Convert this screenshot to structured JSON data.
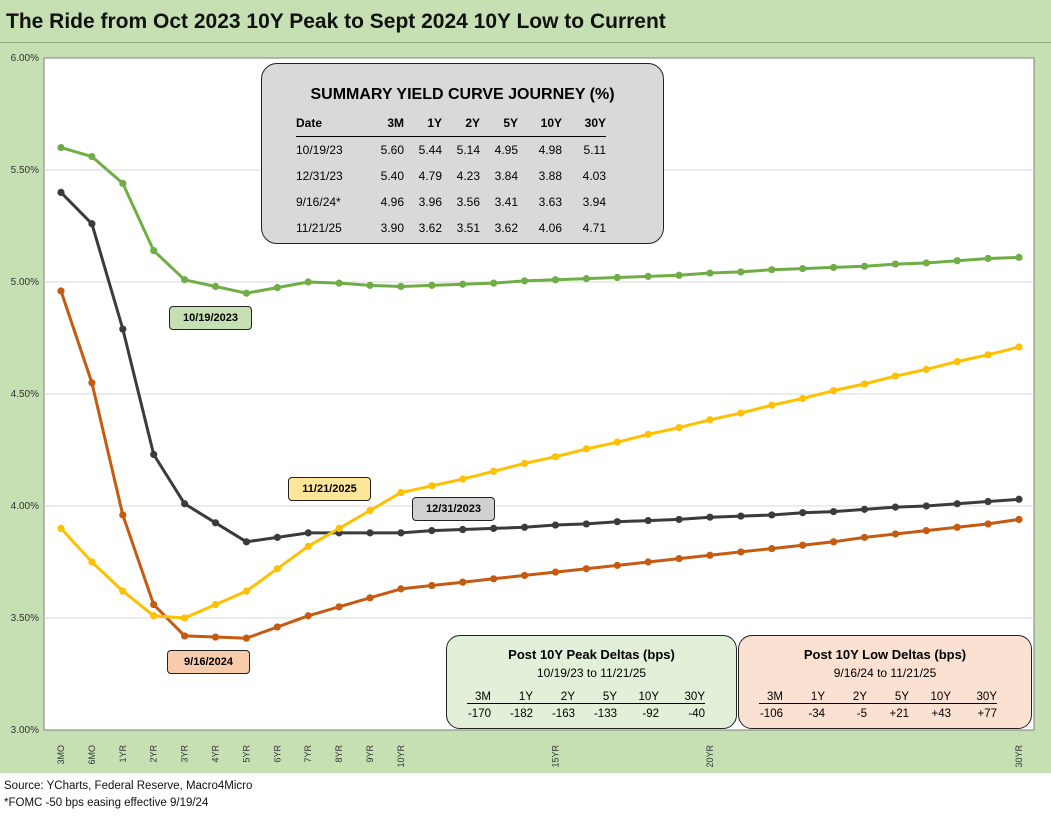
{
  "title": "The Ride from Oct 2023 10Y Peak to Sept 2024 10Y Low to Current",
  "footnotes": {
    "source": "Source: YCharts, Federal Reserve, Macro4Micro",
    "fomc": "*FOMC -50 bps easing effective  9/19/24"
  },
  "colors": {
    "frame": "#c6e0b4",
    "green_series": "#70ad47",
    "black_series": "#3b3b3b",
    "orange_series": "#c55a11",
    "yellow_series": "#ffc000"
  },
  "summary": {
    "title": "SUMMARY YIELD CURVE JOURNEY (%)",
    "headers": [
      "Date",
      "3M",
      "1Y",
      "2Y",
      "5Y",
      "10Y",
      "30Y"
    ],
    "rows": [
      [
        "10/19/23",
        "5.60",
        "5.44",
        "5.14",
        "4.95",
        "4.98",
        "5.11"
      ],
      [
        "12/31/23",
        "5.40",
        "4.79",
        "4.23",
        "3.84",
        "3.88",
        "4.03"
      ],
      [
        " 9/16/24*",
        "4.96",
        "3.96",
        "3.56",
        "3.41",
        "3.63",
        "3.94"
      ],
      [
        "11/21/25",
        "3.90",
        "3.62",
        "3.51",
        "3.62",
        "4.06",
        "4.71"
      ]
    ]
  },
  "peak_deltas": {
    "title": "Post 10Y Peak Deltas (bps)",
    "subtitle": "10/19/23 to 11/21/25",
    "headers": [
      "3M",
      "1Y",
      "2Y",
      "5Y",
      "10Y",
      "30Y"
    ],
    "values": [
      "-170",
      "-182",
      "-163",
      "-133",
      "-92",
      "-40"
    ]
  },
  "low_deltas": {
    "title": "Post 10Y Low Deltas (bps)",
    "subtitle": "9/16/24 to 11/21/25",
    "headers": [
      "3M",
      "1Y",
      "2Y",
      "5Y",
      "10Y",
      "30Y"
    ],
    "values": [
      "-106",
      "-34",
      "-5",
      "+21",
      "+43",
      "+77"
    ]
  },
  "series_labels": {
    "a": "10/19/2023",
    "b": "11/21/2025",
    "c": "12/31/2023",
    "d": "9/16/2024"
  },
  "chart_data": {
    "type": "line",
    "title": "The Ride from Oct 2023 10Y Peak to Sept 2024 10Y Low to Current",
    "xlabel": "",
    "ylabel": "",
    "ylim": [
      3.0,
      6.0
    ],
    "yticks": [
      "3.00%",
      "3.50%",
      "4.00%",
      "4.50%",
      "5.00%",
      "5.50%",
      "6.00%"
    ],
    "ytick_values": [
      3.0,
      3.5,
      4.0,
      4.5,
      5.0,
      5.5,
      6.0
    ],
    "grid": true,
    "x_tick_labels": [
      {
        "i": 0,
        "label": "3MO"
      },
      {
        "i": 1,
        "label": "6MO"
      },
      {
        "i": 2,
        "label": "1YR"
      },
      {
        "i": 3,
        "label": "2YR"
      },
      {
        "i": 4,
        "label": "3YR"
      },
      {
        "i": 5,
        "label": "4YR"
      },
      {
        "i": 6,
        "label": "5YR"
      },
      {
        "i": 7,
        "label": "6YR"
      },
      {
        "i": 8,
        "label": "7YR"
      },
      {
        "i": 9,
        "label": "8YR"
      },
      {
        "i": 10,
        "label": "9YR"
      },
      {
        "i": 11,
        "label": "10YR"
      },
      {
        "i": 16,
        "label": "15YR"
      },
      {
        "i": 21,
        "label": "20YR"
      },
      {
        "i": 31,
        "label": "30YR"
      }
    ],
    "series": [
      {
        "name": "10/19/2023",
        "color": "#70ad47",
        "values": [
          5.6,
          5.56,
          5.44,
          5.14,
          5.01,
          4.98,
          4.95,
          4.975,
          5.0,
          4.995,
          4.985,
          4.98,
          4.985,
          4.99,
          4.995,
          5.005,
          5.01,
          5.015,
          5.02,
          5.025,
          5.03,
          5.04,
          5.045,
          5.055,
          5.06,
          5.065,
          5.07,
          5.08,
          5.085,
          5.095,
          5.105,
          5.11
        ]
      },
      {
        "name": "12/31/2023",
        "color": "#3b3b3b",
        "values": [
          5.4,
          5.26,
          4.79,
          4.23,
          4.01,
          3.925,
          3.84,
          3.86,
          3.88,
          3.88,
          3.88,
          3.88,
          3.89,
          3.895,
          3.9,
          3.905,
          3.915,
          3.92,
          3.93,
          3.935,
          3.94,
          3.95,
          3.955,
          3.96,
          3.97,
          3.975,
          3.985,
          3.995,
          4.0,
          4.01,
          4.02,
          4.03
        ]
      },
      {
        "name": "9/16/2024",
        "color": "#c55a11",
        "values": [
          4.96,
          4.55,
          3.96,
          3.56,
          3.42,
          3.415,
          3.41,
          3.46,
          3.51,
          3.55,
          3.59,
          3.63,
          3.645,
          3.66,
          3.675,
          3.69,
          3.705,
          3.72,
          3.735,
          3.75,
          3.765,
          3.78,
          3.795,
          3.81,
          3.825,
          3.84,
          3.86,
          3.875,
          3.89,
          3.905,
          3.92,
          3.94
        ]
      },
      {
        "name": "11/21/2025",
        "color": "#ffc000",
        "values": [
          3.9,
          3.75,
          3.62,
          3.51,
          3.5,
          3.56,
          3.62,
          3.72,
          3.82,
          3.9,
          3.98,
          4.06,
          4.09,
          4.12,
          4.155,
          4.19,
          4.22,
          4.255,
          4.285,
          4.32,
          4.35,
          4.385,
          4.415,
          4.45,
          4.48,
          4.515,
          4.545,
          4.58,
          4.61,
          4.645,
          4.675,
          4.71
        ]
      }
    ]
  }
}
